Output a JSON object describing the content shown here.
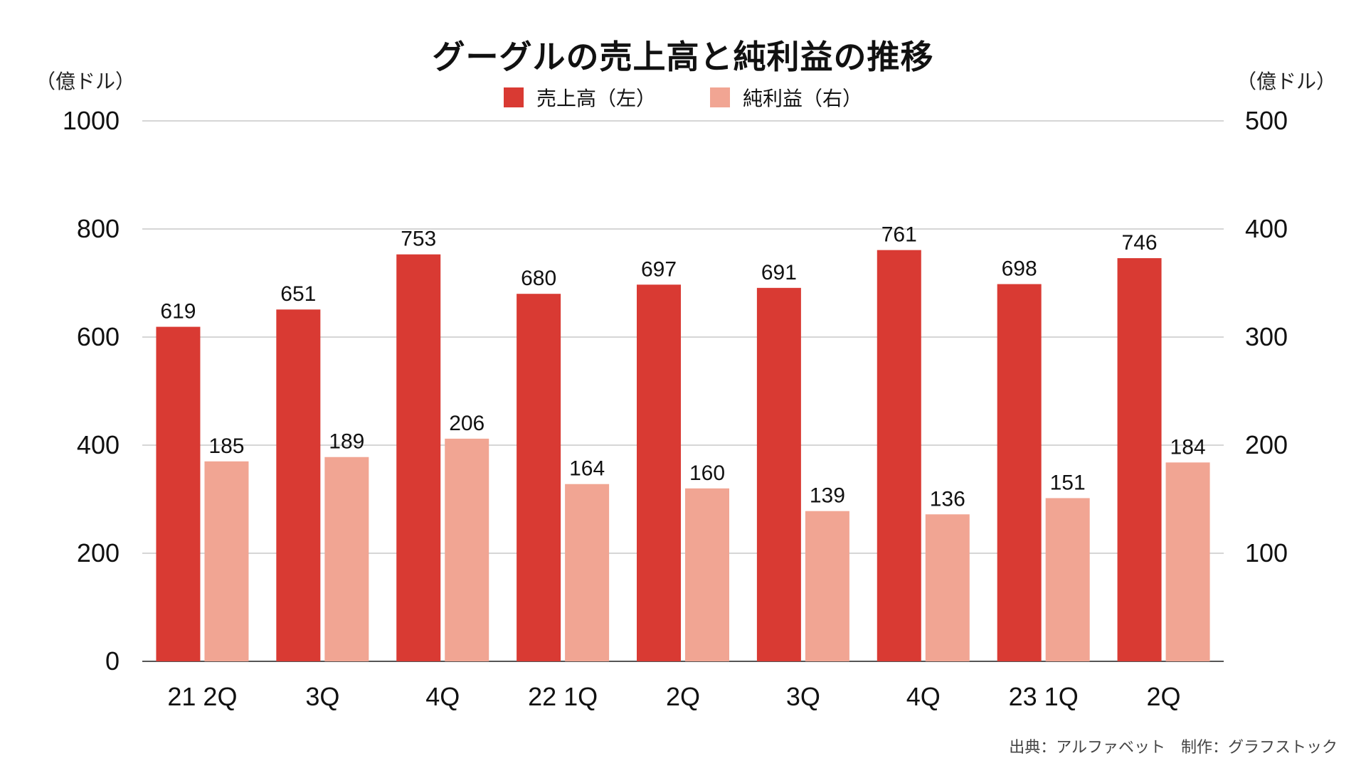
{
  "colors": {
    "revenue": "#d93a33",
    "net_income": "#f1a593",
    "grid": "#bdbdbd",
    "axis": "#555555"
  },
  "chart_data": {
    "type": "bar",
    "title": "グーグルの売上高と純利益の推移",
    "categories": [
      "21 2Q",
      "3Q",
      "4Q",
      "22 1Q",
      "2Q",
      "3Q",
      "4Q",
      "23 1Q",
      "2Q"
    ],
    "series": [
      {
        "name": "売上高（左）",
        "axis": "left",
        "values": [
          619,
          651,
          753,
          680,
          697,
          691,
          761,
          698,
          746
        ]
      },
      {
        "name": "純利益（右）",
        "axis": "right",
        "values": [
          185,
          189,
          206,
          164,
          160,
          139,
          136,
          151,
          184
        ]
      }
    ],
    "y_left": {
      "unit": "（億ドル）",
      "ylim": [
        0,
        1000
      ],
      "ticks": [
        "0",
        "200",
        "400",
        "600",
        "800",
        "1000"
      ]
    },
    "y_right": {
      "unit": "（億ドル）",
      "ylim": [
        0,
        500
      ],
      "ticks": [
        "100",
        "200",
        "300",
        "400",
        "500"
      ]
    },
    "grid": true,
    "legend": "top-center"
  },
  "footer": {
    "source": "出典：アルファベット　制作：グラフストック"
  }
}
